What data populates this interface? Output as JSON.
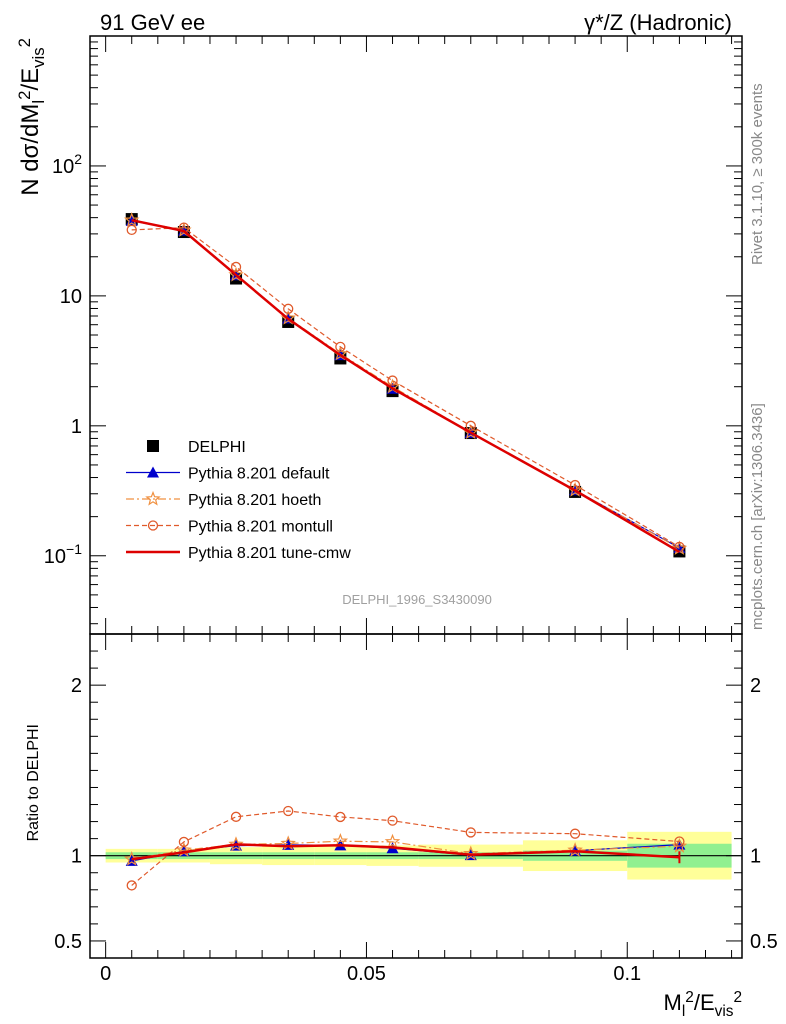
{
  "header": {
    "left": "91 GeV ee",
    "right": "γ*/Z (Hadronic)"
  },
  "side": {
    "rivet": "Rivet 3.1.10, ≥ 300k events",
    "mcplots": "mcplots.cern.ch [arXiv:1306.3436]"
  },
  "watermark": "DELPHI_1996_S3430090",
  "chart_data": {
    "type": "line",
    "xlabel": "M_l^2/E_vis^2",
    "main": {
      "ylabel": "N dσ/dM_l^2/E_vis^2",
      "yscale": "log",
      "ylim": [
        0.025,
        1000
      ],
      "yticks": [
        {
          "v": 0.1,
          "b": "10",
          "e": "−1"
        },
        {
          "v": 1,
          "b": "1",
          "e": ""
        },
        {
          "v": 10,
          "b": "10",
          "e": ""
        },
        {
          "v": 100,
          "b": "10",
          "e": "2"
        }
      ]
    },
    "ratio": {
      "ylabel": "Ratio to DELPHI",
      "ylim": [
        0.4,
        2.3
      ],
      "yticks": [
        "0.5",
        "1",
        "2"
      ],
      "ytick_values": [
        0.5,
        1,
        2
      ]
    },
    "xlim": [
      -0.003,
      0.122
    ],
    "xticks": [
      "0",
      "0.05",
      "0.1"
    ],
    "xtick_values": [
      0,
      0.05,
      0.1
    ],
    "bins": [
      [
        0.0,
        0.01
      ],
      [
        0.01,
        0.02
      ],
      [
        0.02,
        0.03
      ],
      [
        0.03,
        0.04
      ],
      [
        0.04,
        0.05
      ],
      [
        0.05,
        0.06
      ],
      [
        0.06,
        0.08
      ],
      [
        0.08,
        0.1
      ],
      [
        0.1,
        0.12
      ]
    ],
    "x": [
      0.005,
      0.015,
      0.025,
      0.035,
      0.045,
      0.055,
      0.07,
      0.09,
      0.11
    ],
    "data": {
      "name": "DELPHI",
      "values": [
        39.0,
        31.0,
        13.6,
        6.3,
        3.3,
        1.85,
        0.88,
        0.31,
        0.108
      ],
      "band_stat": [
        0.02,
        0.02,
        0.02,
        0.02,
        0.02,
        0.02,
        0.02,
        0.03,
        0.07
      ],
      "band_total": [
        0.04,
        0.04,
        0.05,
        0.055,
        0.055,
        0.06,
        0.065,
        0.09,
        0.14
      ]
    },
    "series": [
      {
        "name": "Pythia 8.201 default",
        "color": "#0000cc",
        "values": [
          37.8,
          31.8,
          14.4,
          6.7,
          3.5,
          1.93,
          0.883,
          0.319,
          0.115
        ]
      },
      {
        "name": "Pythia 8.201 hoeth",
        "color": "#f09040",
        "values": [
          38.2,
          32.0,
          14.5,
          6.75,
          3.58,
          2.0,
          0.89,
          0.32,
          0.114
        ]
      },
      {
        "name": "Pythia 8.201 montull",
        "color": "#e05a2b",
        "values": [
          32.2,
          33.5,
          16.7,
          7.95,
          4.05,
          2.23,
          1.0,
          0.35,
          0.117
        ]
      },
      {
        "name": "Pythia 8.201 tune-cmw",
        "color": "#dd0000",
        "values": [
          38.2,
          31.6,
          14.5,
          6.65,
          3.5,
          1.94,
          0.885,
          0.318,
          0.107
        ]
      }
    ]
  }
}
